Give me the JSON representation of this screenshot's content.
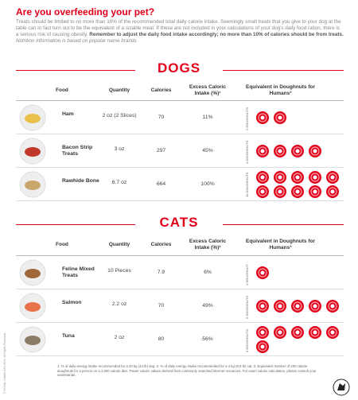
{
  "header": {
    "title": "Are you overfeeding your pet?",
    "intro": "Treats should be limited to no more than 10% of the recommended total daily calorie intake. Seemingly small treats that you give to your dog at the table can in fact turn out to be the equivalent of a sizable meal. If these are not included in your calculations of your dog's daily food ration, there is a serious risk of causing obesity.",
    "intro_bold": "Remember to adjust the daily food intake accordingly; no more than 10% of calories should be from treats.",
    "intro_note": "Nutrition information is based on popular name brands."
  },
  "sections": [
    {
      "title": "DOGS",
      "columns": [
        "Food",
        "Quantity",
        "Calories",
        "Excess Caloric Intake (%)¹",
        "Equivalent in Doughnuts for Humans³"
      ],
      "rows": [
        {
          "food": "Ham",
          "quantity": "2 oz (2 Slices)",
          "calories": "70",
          "excess": "11%",
          "doughnut_label": "2 DOUGHNUTS",
          "doughnuts": 2
        },
        {
          "food": "Bacon Strip Treats",
          "quantity": "3 oz",
          "calories": "297",
          "excess": "45%",
          "doughnut_label": "4 DOUGHNUTS",
          "doughnuts": 4
        },
        {
          "food": "Rawhide Bone",
          "quantity": "6.7 oz",
          "calories": "664",
          "excess": "100%",
          "doughnut_label": "10 DOUGHNUTS",
          "doughnuts": 10
        }
      ]
    },
    {
      "title": "CATS",
      "columns": [
        "Food",
        "Quantity",
        "Calories",
        "Excess Caloric Intake (%)²",
        "Equivalent in Doughnuts for Humans³"
      ],
      "rows": [
        {
          "food": "Feline Mixed Treats",
          "quantity": "10 Pieces",
          "calories": "7.9",
          "excess": "6%",
          "doughnut_label": "1 DOUGHNUT",
          "doughnuts": 1
        },
        {
          "food": "Salmon",
          "quantity": "2.2 oz",
          "calories": "70",
          "excess": "49%",
          "doughnut_label": "5 DOUGHNUTS",
          "doughnuts": 5
        },
        {
          "food": "Tuna",
          "quantity": "2 oz",
          "calories": "80",
          "excess": "56%",
          "doughnut_label": "6 DOUGHNUTS",
          "doughnuts": 6
        }
      ]
    }
  ],
  "footnote": "1. % of daily energy intake recommended for a 20 kg (44 lb) dog. 2. % of daily energy intake recommended for a 4 kg (8.8 lb) cat. 3. Equivalent number of 200 calorie doughnuts for a person on a 2,000 calorie diet. Treats' caloric values derived from commonly searched internet resources. For exact calorie calculation, please consult your veterinarian.",
  "copyright": "© ROYAL CANIN SAS 2018. All Rights Reserved."
}
